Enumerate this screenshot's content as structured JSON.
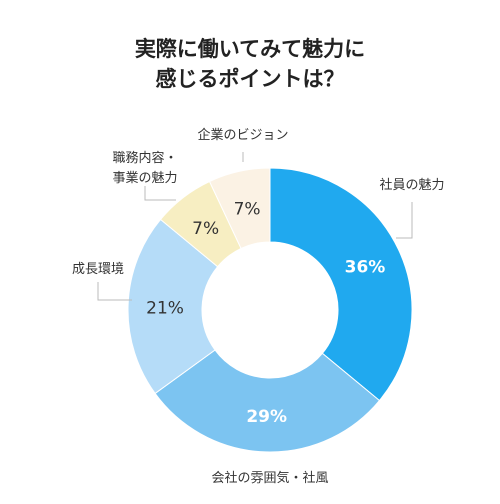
{
  "chart_data": {
    "type": "pie",
    "variant": "donut",
    "title_lines": [
      "実際に働いてみて魅力に",
      "感じるポイントは？"
    ],
    "slices": [
      {
        "label": "社員の魅力",
        "label_lines": [
          "社員の魅力"
        ],
        "value": 36,
        "value_label": "36%",
        "color": "#20a9ef",
        "text_color": "#ffffff"
      },
      {
        "label": "会社の雰囲気・社風",
        "label_lines": [
          "会社の雰囲気・社風"
        ],
        "value": 29,
        "value_label": "29%",
        "color": "#7cc4f1",
        "text_color": "#ffffff"
      },
      {
        "label": "成長環境",
        "label_lines": [
          "成長環境"
        ],
        "value": 21,
        "value_label": "21%",
        "color": "#b5dcf8",
        "text_color": "#333333"
      },
      {
        "label": "職務内容・事業の魅力",
        "label_lines": [
          "職務内容・",
          "事業の魅力"
        ],
        "value": 7,
        "value_label": "7%",
        "color": "#f7eec2",
        "text_color": "#333333"
      },
      {
        "label": "企業のビジョン",
        "label_lines": [
          "企業のビジョン"
        ],
        "value": 7,
        "value_label": "7%",
        "color": "#fbf2e4",
        "text_color": "#333333"
      }
    ]
  }
}
